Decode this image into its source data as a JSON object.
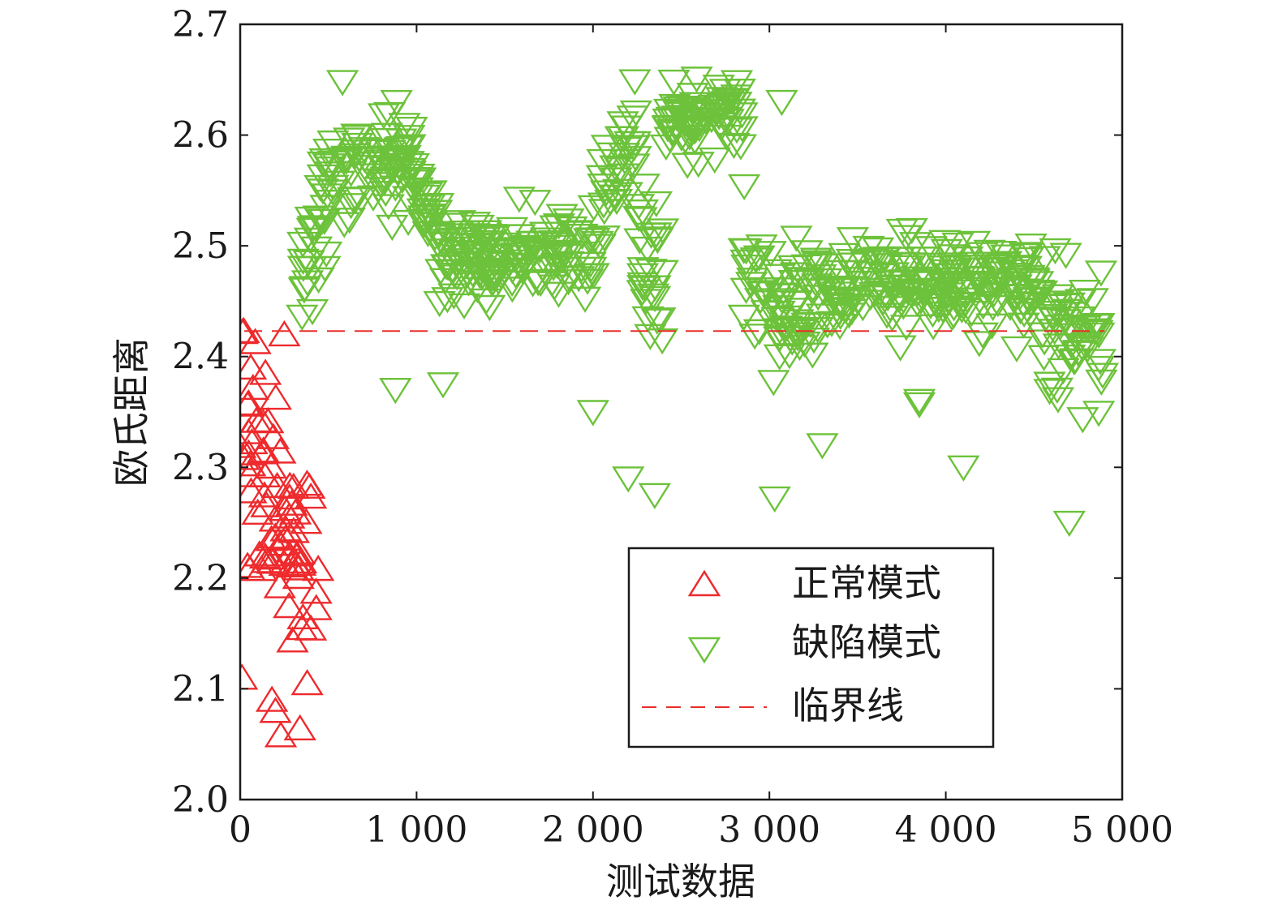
{
  "chart_data": {
    "type": "scatter",
    "xlabel": "测试数据",
    "ylabel": "欧氏距离",
    "xlim": [
      0,
      5000
    ],
    "ylim": [
      2.0,
      2.7
    ],
    "x_ticks": [
      "0",
      "1 000",
      "2 000",
      "3 000",
      "4 000",
      "5 000"
    ],
    "y_ticks": [
      "2.0",
      "2.1",
      "2.2",
      "2.3",
      "2.4",
      "2.5",
      "2.6",
      "2.7"
    ],
    "x_tick_values": [
      0,
      1000,
      2000,
      3000,
      4000,
      5000
    ],
    "y_tick_values": [
      2.0,
      2.1,
      2.2,
      2.3,
      2.4,
      2.5,
      2.6,
      2.7
    ],
    "grid": false,
    "legend_position": "bottom-right",
    "threshold": {
      "name": "临界线",
      "y": 2.423,
      "color": "#e8302a",
      "style": "dashed"
    },
    "series": [
      {
        "name": "正常模式",
        "marker": "triangle-up",
        "color": "#ee2a2d",
        "segments": [
          {
            "x": [
              0,
              250
            ],
            "center": [
              2.33,
              2.26
            ],
            "spread": 0.09
          },
          {
            "x": [
              250,
              450
            ],
            "center": [
              2.26,
              2.2
            ],
            "spread": 0.08
          }
        ],
        "highlights": [
          {
            "x": 20,
            "y": 2.423
          },
          {
            "x": 250,
            "y": 2.42
          },
          {
            "x": 10,
            "y": 2.11
          },
          {
            "x": 200,
            "y": 2.08
          },
          {
            "x": 230,
            "y": 2.058
          },
          {
            "x": 380,
            "y": 2.105
          },
          {
            "x": 60,
            "y": 2.39
          },
          {
            "x": 180,
            "y": 2.09
          }
        ]
      },
      {
        "name": "缺陷模式",
        "marker": "triangle-down",
        "color": "#6cc23a",
        "segments": [
          {
            "x": [
              350,
              500
            ],
            "center": [
              2.47,
              2.54
            ],
            "spread": 0.06
          },
          {
            "x": [
              500,
              1000
            ],
            "center": [
              2.56,
              2.58
            ],
            "spread": 0.04
          },
          {
            "x": [
              1000,
              1150
            ],
            "center": [
              2.56,
              2.49
            ],
            "spread": 0.03
          },
          {
            "x": [
              1150,
              2050
            ],
            "center": [
              2.49,
              2.49
            ],
            "spread": 0.03
          },
          {
            "x": [
              2050,
              2250
            ],
            "center": [
              2.55,
              2.6
            ],
            "spread": 0.04
          },
          {
            "x": [
              2250,
              2400
            ],
            "center": [
              2.5,
              2.45
            ],
            "spread": 0.06
          },
          {
            "x": [
              2400,
              2850
            ],
            "center": [
              2.61,
              2.62
            ],
            "spread": 0.03
          },
          {
            "x": [
              2850,
              3200
            ],
            "center": [
              2.48,
              2.43
            ],
            "spread": 0.05
          },
          {
            "x": [
              3200,
              4200
            ],
            "center": [
              2.46,
              2.46
            ],
            "spread": 0.035
          },
          {
            "x": [
              4200,
              4550
            ],
            "center": [
              2.47,
              2.46
            ],
            "spread": 0.04
          },
          {
            "x": [
              4550,
              4900
            ],
            "center": [
              2.44,
              2.4
            ],
            "spread": 0.06
          }
        ],
        "highlights": [
          {
            "x": 880,
            "y": 2.37
          },
          {
            "x": 2200,
            "y": 2.29
          },
          {
            "x": 2350,
            "y": 2.275
          },
          {
            "x": 3030,
            "y": 2.272
          },
          {
            "x": 3850,
            "y": 2.357
          },
          {
            "x": 4100,
            "y": 2.3
          },
          {
            "x": 4700,
            "y": 2.25
          },
          {
            "x": 3070,
            "y": 2.63
          },
          {
            "x": 2750,
            "y": 2.64
          },
          {
            "x": 580,
            "y": 2.648
          },
          {
            "x": 3850,
            "y": 2.36
          },
          {
            "x": 3300,
            "y": 2.32
          },
          {
            "x": 1150,
            "y": 2.375
          },
          {
            "x": 2000,
            "y": 2.35
          }
        ]
      }
    ]
  }
}
